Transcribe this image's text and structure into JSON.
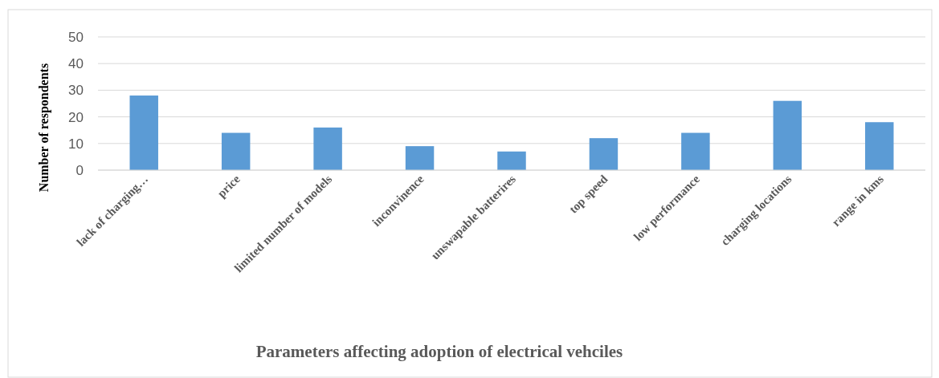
{
  "chart_data": {
    "type": "bar",
    "title": "Parameters affecting adoption of electrical vehciles",
    "ylabel": "Number of respondents",
    "categories": [
      "lack of charging…",
      "price",
      "limited number of models",
      "inconvinence",
      "unswapable batterires",
      "top speed",
      "low performance",
      "charging locations",
      "range in kms"
    ],
    "values": [
      28,
      14,
      16,
      9,
      7,
      12,
      14,
      26,
      18
    ],
    "color": "#5b9bd5",
    "ylim": [
      0,
      50
    ],
    "yticks": [
      0,
      10,
      20,
      30,
      40,
      50
    ],
    "grid": "y"
  }
}
